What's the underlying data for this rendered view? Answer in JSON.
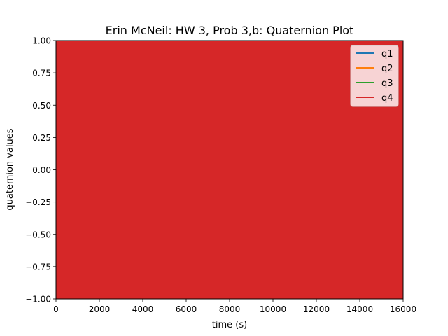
{
  "chart_data": {
    "type": "line",
    "title": "Erin McNeil: HW 3, Prob 3,b: Quaternion Plot",
    "xlabel": "time (s)",
    "ylabel": "quaternion values",
    "xlim": [
      0,
      16000
    ],
    "ylim": [
      -1.0,
      1.0
    ],
    "xticks": [
      0,
      2000,
      4000,
      6000,
      8000,
      10000,
      12000,
      14000,
      16000
    ],
    "xtick_labels": [
      "0",
      "2000",
      "4000",
      "6000",
      "8000",
      "10000",
      "12000",
      "14000",
      "16000"
    ],
    "yticks": [
      -1.0,
      -0.75,
      -0.5,
      -0.25,
      0.0,
      0.25,
      0.5,
      0.75,
      1.0
    ],
    "ytick_labels": [
      "−1.00",
      "−0.75",
      "−0.50",
      "−0.25",
      "0.00",
      "0.25",
      "0.50",
      "0.75",
      "1.00"
    ],
    "grid": false,
    "legend_position": "top-right",
    "series": [
      {
        "name": "q1",
        "color": "#1f77b4",
        "x": [
          0,
          16000
        ],
        "y_min": [
          -1.0,
          -1.0
        ],
        "y_max": [
          1.0,
          1.0
        ]
      },
      {
        "name": "q2",
        "color": "#ff7f0e",
        "x": [
          0,
          16000
        ],
        "y_min": [
          -1.0,
          -1.0
        ],
        "y_max": [
          1.0,
          1.0
        ]
      },
      {
        "name": "q3",
        "color": "#2ca02c",
        "x": [
          0,
          16000
        ],
        "y_min": [
          -1.0,
          -1.0
        ],
        "y_max": [
          1.0,
          1.0
        ]
      },
      {
        "name": "q4",
        "color": "#d62728",
        "x": [
          0,
          16000
        ],
        "y_min": [
          -1.0,
          -1.0
        ],
        "y_max": [
          1.0,
          1.0
        ]
      }
    ]
  }
}
